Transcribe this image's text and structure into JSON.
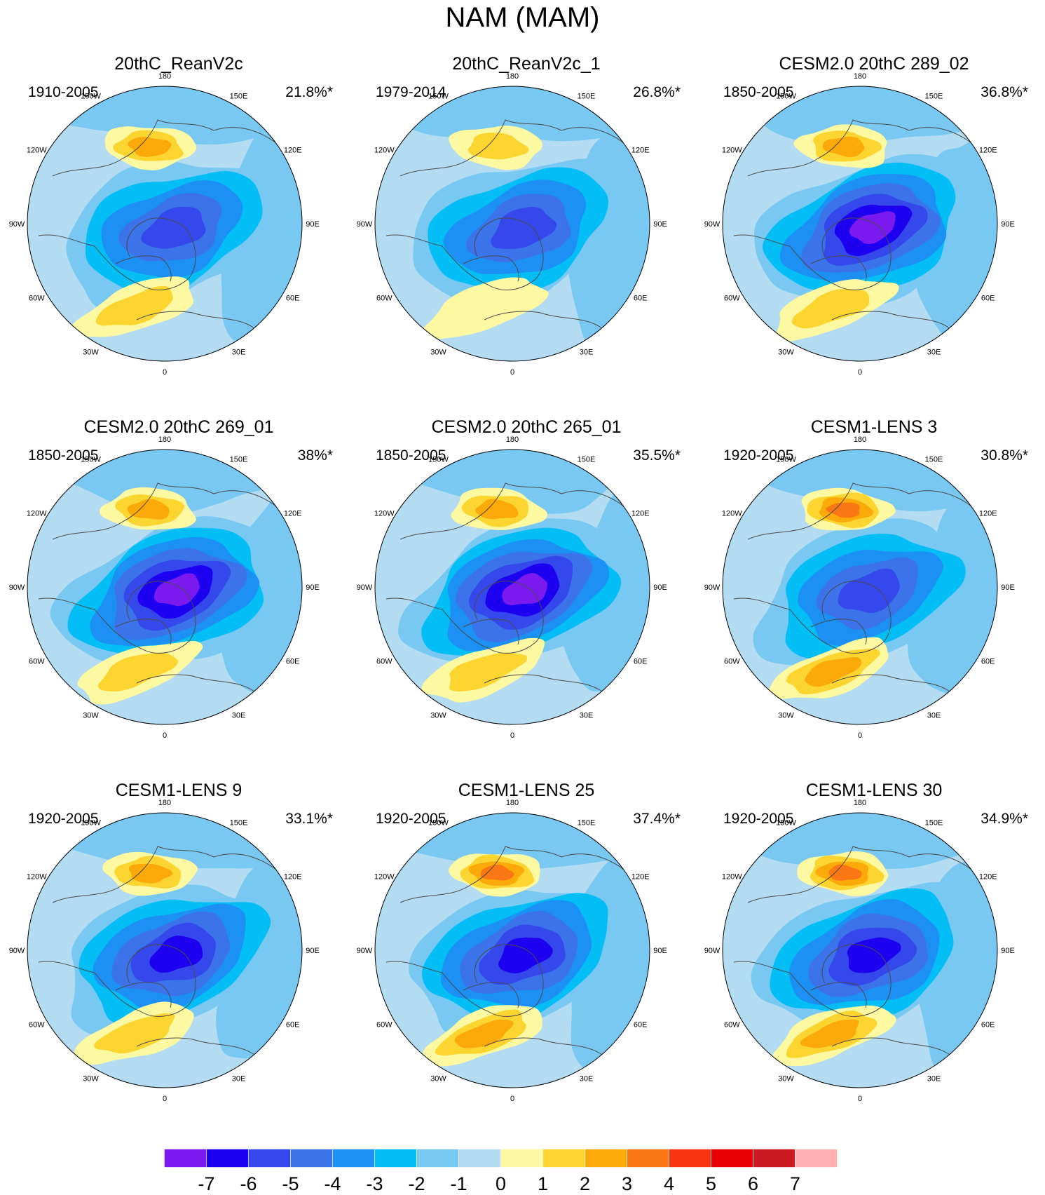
{
  "title": "NAM (MAM)",
  "lon_labels": [
    "180",
    "150E",
    "120E",
    "90E",
    "60E",
    "30E",
    "0",
    "30W",
    "60W",
    "90W",
    "120W",
    "150W"
  ],
  "panels": [
    {
      "title": "20thC_ReanV2c",
      "period": "1910-2005",
      "variance": "21.8%*",
      "min_level": -5,
      "max_level": 3
    },
    {
      "title": "20thC_ReanV2c_1",
      "period": "1979-2014",
      "variance": "26.8%*",
      "min_level": -5,
      "max_level": 2
    },
    {
      "title": "CESM2.0 20thC 289_02",
      "period": "1850-2005",
      "variance": "36.8%*",
      "min_level": -7,
      "max_level": 3
    },
    {
      "title": "CESM2.0 20thC 269_01",
      "period": "1850-2005",
      "variance": "38%*",
      "min_level": -7,
      "max_level": 3
    },
    {
      "title": "CESM2.0 20thC 265_01",
      "period": "1850-2005",
      "variance": "35.5%*",
      "min_level": -7,
      "max_level": 3
    },
    {
      "title": "CESM1-LENS 3",
      "period": "1920-2005",
      "variance": "30.8%*",
      "min_level": -5,
      "max_level": 4
    },
    {
      "title": "CESM1-LENS 9",
      "period": "1920-2005",
      "variance": "33.1%*",
      "min_level": -6,
      "max_level": 3
    },
    {
      "title": "CESM1-LENS 25",
      "period": "1920-2005",
      "variance": "37.4%*",
      "min_level": -6,
      "max_level": 4
    },
    {
      "title": "CESM1-LENS 30",
      "period": "1920-2005",
      "variance": "34.9%*",
      "min_level": -6,
      "max_level": 4
    }
  ],
  "colorbar": {
    "labels": [
      "-7",
      "-6",
      "-5",
      "-4",
      "-3",
      "-2",
      "-1",
      "0",
      "1",
      "2",
      "3",
      "4",
      "5",
      "6",
      "7"
    ],
    "colors": [
      "#7a1aee",
      "#1e00f0",
      "#3548eb",
      "#3c73eb",
      "#1c90f4",
      "#03bdf5",
      "#78c8f2",
      "#b3dcf2",
      "#fdf9a2",
      "#fdd530",
      "#fca90a",
      "#fb7614",
      "#fa3410",
      "#e70005",
      "#cc1b20",
      "#ffb0b0"
    ]
  }
}
